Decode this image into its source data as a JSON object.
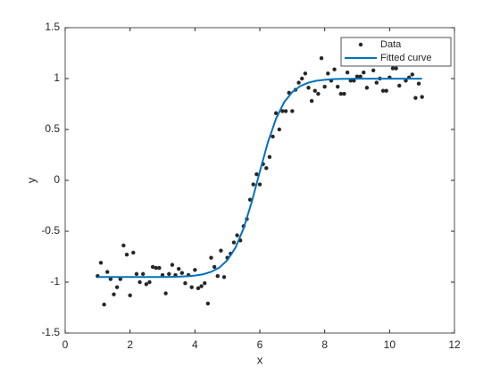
{
  "chart_data": {
    "type": "scatter",
    "xlabel": "x",
    "ylabel": "y",
    "xlim": [
      0,
      12
    ],
    "ylim": [
      -1.5,
      1.5
    ],
    "xticks": [
      0,
      2,
      4,
      6,
      8,
      10,
      12
    ],
    "yticks": [
      -1.5,
      -1,
      -0.5,
      0,
      0.5,
      1,
      1.5
    ],
    "grid": false,
    "legend": "northeast",
    "series": [
      {
        "name": "Data",
        "type": "scatter",
        "color": "#262626",
        "x": [
          1.0,
          1.1,
          1.2,
          1.3,
          1.4,
          1.5,
          1.6,
          1.7,
          1.8,
          1.9,
          2.0,
          2.1,
          2.2,
          2.3,
          2.4,
          2.5,
          2.6,
          2.7,
          2.8,
          2.9,
          3.0,
          3.1,
          3.2,
          3.3,
          3.4,
          3.5,
          3.6,
          3.7,
          3.8,
          3.9,
          4.0,
          4.1,
          4.2,
          4.3,
          4.4,
          4.5,
          4.6,
          4.7,
          4.8,
          4.9,
          5.0,
          5.1,
          5.2,
          5.3,
          5.4,
          5.5,
          5.6,
          5.7,
          5.8,
          5.9,
          6.0,
          6.1,
          6.2,
          6.3,
          6.4,
          6.5,
          6.6,
          6.7,
          6.8,
          6.9,
          7.0,
          7.1,
          7.2,
          7.3,
          7.4,
          7.5,
          7.6,
          7.7,
          7.8,
          7.9,
          8.0,
          8.1,
          8.2,
          8.3,
          8.4,
          8.5,
          8.6,
          8.7,
          8.8,
          8.9,
          9.0,
          9.1,
          9.2,
          9.3,
          9.4,
          9.5,
          9.6,
          9.7,
          9.8,
          9.9,
          10.0,
          10.1,
          10.2,
          10.3,
          10.4,
          10.5,
          10.6,
          10.7,
          10.8,
          10.9,
          11.0
        ],
        "values": [
          -0.94,
          -0.81,
          -1.22,
          -0.9,
          -0.97,
          -1.12,
          -1.05,
          -0.97,
          -0.64,
          -0.73,
          -1.13,
          -0.71,
          -0.92,
          -1.0,
          -0.92,
          -1.02,
          -1.0,
          -0.85,
          -0.86,
          -0.86,
          -0.93,
          -1.11,
          -0.92,
          -0.83,
          -0.93,
          -0.87,
          -0.91,
          -1.01,
          -0.93,
          -1.05,
          -0.88,
          -1.06,
          -1.04,
          -1.01,
          -1.21,
          -0.76,
          -0.85,
          -0.94,
          -0.69,
          -0.95,
          -0.76,
          -0.72,
          -0.61,
          -0.54,
          -0.59,
          -0.45,
          -0.38,
          -0.19,
          -0.04,
          0.06,
          -0.04,
          0.16,
          0.12,
          0.23,
          0.43,
          0.66,
          0.5,
          0.68,
          0.68,
          0.86,
          0.68,
          0.89,
          0.96,
          1.0,
          1.05,
          0.91,
          0.78,
          0.88,
          0.85,
          1.2,
          0.92,
          1.05,
          0.98,
          1.09,
          0.92,
          0.85,
          0.85,
          1.06,
          0.98,
          0.98,
          1.02,
          1.02,
          1.06,
          0.91,
          1.14,
          1.08,
          0.96,
          1.0,
          0.88,
          0.88,
          1.01,
          1.1,
          1.1,
          0.93,
          1.14,
          0.98,
          1.01,
          1.04,
          0.81,
          0.95,
          0.82
        ]
      },
      {
        "name": "Fitted curve",
        "type": "line",
        "color": "#0072bd",
        "x": [
          1,
          1.25,
          1.5,
          1.75,
          2,
          2.25,
          2.5,
          2.75,
          3,
          3.25,
          3.5,
          3.75,
          4,
          4.25,
          4.5,
          4.75,
          5,
          5.25,
          5.5,
          5.75,
          6,
          6.25,
          6.5,
          6.75,
          7,
          7.25,
          7.5,
          7.75,
          8,
          8.25,
          8.5,
          8.75,
          9,
          9.25,
          9.5,
          9.75,
          10,
          10.25,
          10.5,
          10.75,
          11
        ],
        "values": [
          -0.95,
          -0.95,
          -0.95,
          -0.95,
          -0.95,
          -0.95,
          -0.95,
          -0.95,
          -0.95,
          -0.948,
          -0.946,
          -0.942,
          -0.935,
          -0.923,
          -0.899,
          -0.858,
          -0.784,
          -0.661,
          -0.472,
          -0.214,
          0.086,
          0.375,
          0.606,
          0.768,
          0.868,
          0.927,
          0.96,
          0.979,
          0.988,
          0.994,
          0.997,
          0.998,
          0.999,
          0.999,
          0.999,
          0.999,
          0.999,
          0.999,
          0.999,
          0.999,
          0.999
        ]
      }
    ]
  }
}
